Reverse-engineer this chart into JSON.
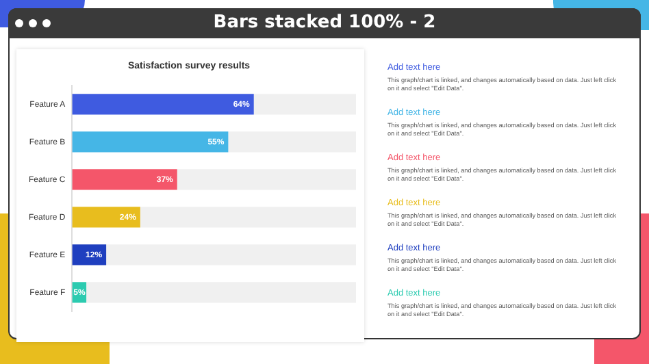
{
  "chart_data": {
    "type": "bar",
    "orientation": "horizontal",
    "stacked": true,
    "title": "Bars stacked 100% - 2",
    "subtitle": "Satisfaction survey results",
    "categories": [
      "Feature A",
      "Feature B",
      "Feature C",
      "Feature D",
      "Feature E",
      "Feature F"
    ],
    "series": [
      {
        "colors": [
          "#3f5be0",
          "#45b6e6",
          "#f4566a",
          "#e8bd1e",
          "#1f3fbf",
          "#2ccbb0"
        ],
        "values": [
          64,
          55,
          37,
          24,
          12,
          5
        ],
        "value_labels": [
          "64%",
          "55%",
          "37%",
          "24%",
          "12%",
          "5%"
        ]
      },
      {
        "color": "#f0f0f0",
        "values": [
          36,
          45,
          63,
          76,
          88,
          95
        ]
      }
    ],
    "xlim": [
      0,
      100
    ],
    "tick_labels": "y",
    "grid": false,
    "legend": false,
    "annotations": [
      "Add text here",
      "This graph/chart is linked, and changes automatically based on data. Just left click on it and select \"Edit Data\".",
      "Add text here",
      "This graph/chart is linked, and changes automatically based on data. Just left click on it and select \"Edit Data\".",
      "Add text here",
      "This graph/chart is linked, and changes automatically based on data. Just left click on it and select \"Edit Data\".",
      "Add text here",
      "This graph/chart is linked, and changes automatically based on data. Just left click on it and select \"Edit Data\".",
      "Add text here",
      "This graph/chart is linked, and changes automatically based on data. Just left click on it and select \"Edit Data\".",
      "Add text here",
      "This graph/chart is linked, and changes automatically based on data. Just left click on it and select \"Edit Data\"."
    ]
  }
}
